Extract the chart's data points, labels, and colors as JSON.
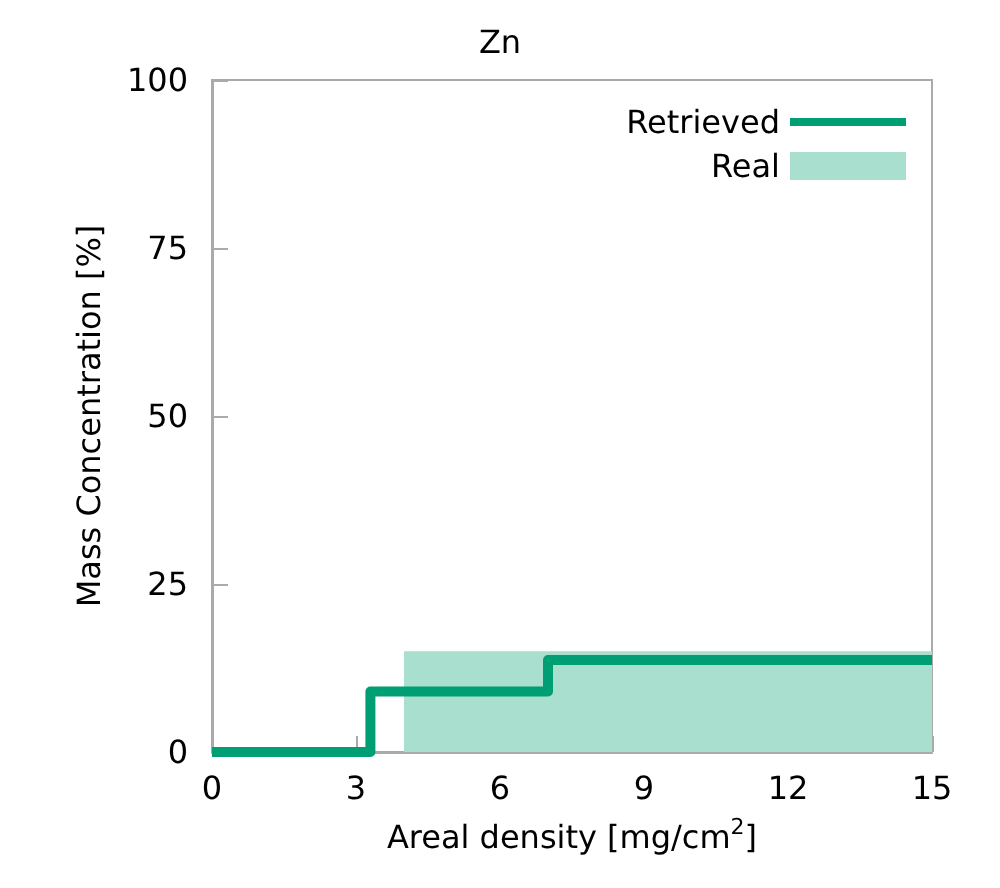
{
  "chart_data": {
    "type": "step",
    "title": "Zn",
    "xlabel": "Areal density [mg/cm$^{2}$]",
    "ylabel": "Mass Concentration [%]",
    "xlim": [
      0,
      15
    ],
    "xticks": [
      0,
      3,
      6,
      9,
      12,
      15
    ],
    "ylim": [
      0,
      100
    ],
    "yticks": [
      0,
      25,
      50,
      75,
      100
    ],
    "grid": false,
    "legend": "top right",
    "series": [
      {
        "name": "Retrieved",
        "color": "#009e73",
        "x": [
          0,
          3.3,
          7,
          15
        ],
        "values": [
          0,
          9,
          13.7,
          13.7
        ]
      },
      {
        "name": "Real",
        "type": "area",
        "color": "#a8dfcf",
        "x": [
          4,
          15
        ],
        "values": [
          15,
          15
        ]
      }
    ]
  }
}
